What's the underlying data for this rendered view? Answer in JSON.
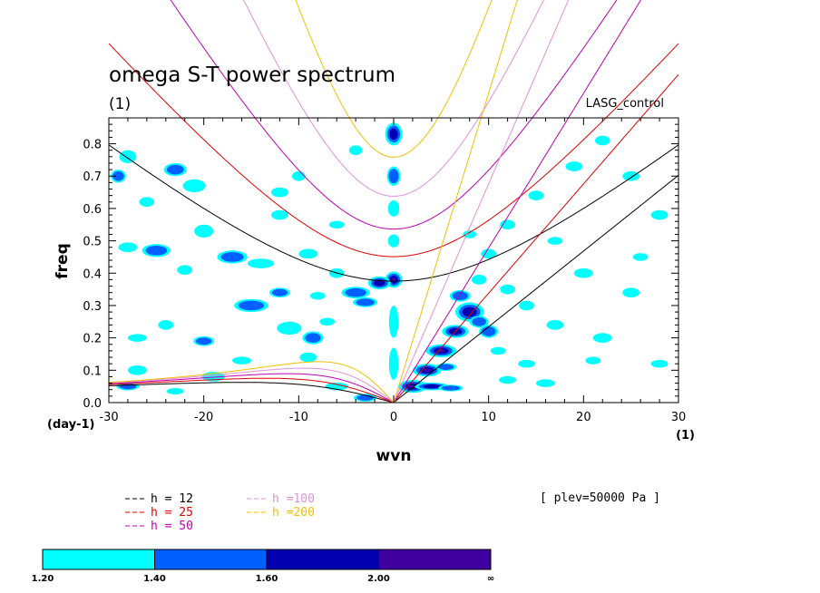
{
  "chart_data": {
    "type": "heatmap",
    "title": "omega S-T power spectrum",
    "subtitle": "(1)",
    "label_right": "LASG_control",
    "xlabel": "wvn",
    "ylabel": "freq",
    "x_unit_label": "(1)",
    "y_unit_label": "(day-1)",
    "xlim": [
      -30,
      30
    ],
    "ylim": [
      0,
      0.88
    ],
    "x_ticks": [
      -30,
      -20,
      -10,
      0,
      10,
      20,
      30
    ],
    "x_tick_labels": [
      "-30",
      "-20",
      "-10",
      "0",
      "10",
      "20",
      "30"
    ],
    "y_ticks": [
      0,
      0.1,
      0.2,
      0.3,
      0.4,
      0.5,
      0.6,
      0.7,
      0.8
    ],
    "y_tick_labels": [
      "0.0",
      "0.1",
      "0.2",
      "0.3",
      "0.4",
      "0.5",
      "0.6",
      "0.7",
      "0.8"
    ],
    "dispersion_curves": [
      {
        "label": "h = 12",
        "h": 12,
        "color": "#000000"
      },
      {
        "label": "h = 25",
        "h": 25,
        "color": "#e00000"
      },
      {
        "label": "h = 50",
        "h": 50,
        "color": "#c000b0"
      },
      {
        "label": "h =100",
        "h": 100,
        "color": "#e090d8"
      },
      {
        "label": "h =200",
        "h": 200,
        "color": "#f0c000"
      }
    ],
    "note": "[ plev=50000 Pa ]",
    "colorbar": {
      "levels": [
        "1.20",
        "1.40",
        "1.60",
        "2.00",
        "∞"
      ],
      "colors": [
        "#00ffff",
        "#0060ff",
        "#0000b0",
        "#4000a0"
      ]
    },
    "contour_blobs": [
      [
        0,
        0.83,
        0.9,
        0.035,
        3
      ],
      [
        0,
        0.7,
        0.7,
        0.03,
        2
      ],
      [
        0,
        0.6,
        0.6,
        0.025,
        1
      ],
      [
        0,
        0.5,
        0.6,
        0.02,
        1
      ],
      [
        0,
        0.38,
        0.9,
        0.025,
        4
      ],
      [
        -1.5,
        0.37,
        1.2,
        0.02,
        3
      ],
      [
        -4,
        0.34,
        1.5,
        0.018,
        2
      ],
      [
        -3,
        0.31,
        1.3,
        0.015,
        2
      ],
      [
        0,
        0.25,
        0.5,
        0.05,
        1
      ],
      [
        0,
        0.12,
        0.5,
        0.05,
        1
      ],
      [
        2,
        0.05,
        1.5,
        0.02,
        4
      ],
      [
        3.5,
        0.1,
        1.5,
        0.02,
        4
      ],
      [
        5,
        0.16,
        1.6,
        0.02,
        4
      ],
      [
        6.5,
        0.22,
        1.4,
        0.02,
        3
      ],
      [
        8,
        0.28,
        1.5,
        0.03,
        3
      ],
      [
        7,
        0.33,
        1.1,
        0.018,
        2
      ],
      [
        9,
        0.25,
        1.0,
        0.018,
        2
      ],
      [
        4,
        0.05,
        1.8,
        0.012,
        3
      ],
      [
        6,
        0.045,
        1.3,
        0.01,
        2
      ],
      [
        5.5,
        0.11,
        1.1,
        0.012,
        2
      ],
      [
        10,
        0.22,
        1.0,
        0.02,
        2
      ],
      [
        9,
        0.38,
        0.8,
        0.015,
        1
      ],
      [
        12,
        0.35,
        0.8,
        0.015,
        1
      ],
      [
        -28,
        0.76,
        0.9,
        0.02,
        1
      ],
      [
        -29,
        0.7,
        0.8,
        0.02,
        2
      ],
      [
        -26,
        0.62,
        0.8,
        0.015,
        1
      ],
      [
        -23,
        0.72,
        1.2,
        0.02,
        2
      ],
      [
        -21,
        0.67,
        1.2,
        0.02,
        1
      ],
      [
        -20,
        0.53,
        1.0,
        0.02,
        1
      ],
      [
        -17,
        0.45,
        1.6,
        0.02,
        2
      ],
      [
        -14,
        0.43,
        1.4,
        0.015,
        1
      ],
      [
        -12,
        0.58,
        0.9,
        0.015,
        1
      ],
      [
        -25,
        0.47,
        1.5,
        0.02,
        2
      ],
      [
        -28,
        0.48,
        1.0,
        0.015,
        1
      ],
      [
        -22,
        0.41,
        0.8,
        0.015,
        1
      ],
      [
        -15,
        0.3,
        1.8,
        0.02,
        2
      ],
      [
        -12,
        0.34,
        1.1,
        0.015,
        2
      ],
      [
        -11,
        0.23,
        1.3,
        0.02,
        1
      ],
      [
        -8.5,
        0.2,
        1.1,
        0.02,
        2
      ],
      [
        -7,
        0.25,
        0.8,
        0.012,
        1
      ],
      [
        -9,
        0.14,
        0.9,
        0.015,
        1
      ],
      [
        -20,
        0.19,
        1.1,
        0.015,
        2
      ],
      [
        -24,
        0.24,
        0.8,
        0.015,
        1
      ],
      [
        -27,
        0.2,
        1.0,
        0.012,
        1
      ],
      [
        -27,
        0.1,
        1.0,
        0.015,
        1
      ],
      [
        -19,
        0.08,
        1.2,
        0.015,
        1
      ],
      [
        -16,
        0.13,
        1.0,
        0.012,
        1
      ],
      [
        -28,
        0.05,
        1.2,
        0.012,
        2
      ],
      [
        -23,
        0.035,
        0.9,
        0.01,
        1
      ],
      [
        -6,
        0.05,
        1.2,
        0.012,
        1
      ],
      [
        -3,
        0.015,
        1.2,
        0.012,
        2
      ],
      [
        -6,
        0.4,
        0.8,
        0.015,
        1
      ],
      [
        -8,
        0.33,
        0.8,
        0.012,
        1
      ],
      [
        -12,
        0.65,
        0.9,
        0.015,
        1
      ],
      [
        -10,
        0.7,
        0.7,
        0.015,
        1
      ],
      [
        -6,
        0.55,
        0.8,
        0.012,
        1
      ],
      [
        -9,
        0.46,
        1.0,
        0.015,
        1
      ],
      [
        -4,
        0.78,
        0.7,
        0.015,
        1
      ],
      [
        12,
        0.55,
        0.8,
        0.015,
        1
      ],
      [
        15,
        0.64,
        0.8,
        0.015,
        1
      ],
      [
        19,
        0.73,
        0.9,
        0.015,
        1
      ],
      [
        22,
        0.81,
        0.8,
        0.015,
        1
      ],
      [
        25,
        0.7,
        0.9,
        0.015,
        1
      ],
      [
        28,
        0.58,
        0.9,
        0.015,
        1
      ],
      [
        14,
        0.3,
        0.8,
        0.015,
        1
      ],
      [
        17,
        0.24,
        0.9,
        0.015,
        1
      ],
      [
        22,
        0.2,
        1.0,
        0.015,
        1
      ],
      [
        25,
        0.34,
        0.9,
        0.015,
        1
      ],
      [
        28,
        0.12,
        0.9,
        0.012,
        1
      ],
      [
        21,
        0.13,
        0.8,
        0.012,
        1
      ],
      [
        14,
        0.12,
        0.9,
        0.012,
        1
      ],
      [
        16,
        0.06,
        1.0,
        0.012,
        1
      ],
      [
        12,
        0.07,
        0.9,
        0.012,
        1
      ],
      [
        10,
        0.46,
        0.8,
        0.015,
        1
      ],
      [
        8,
        0.52,
        0.7,
        0.012,
        1
      ],
      [
        20,
        0.4,
        1.0,
        0.015,
        1
      ],
      [
        26,
        0.45,
        0.8,
        0.012,
        1
      ],
      [
        11,
        0.16,
        0.8,
        0.012,
        1
      ],
      [
        17,
        0.5,
        0.8,
        0.012,
        1
      ]
    ]
  }
}
